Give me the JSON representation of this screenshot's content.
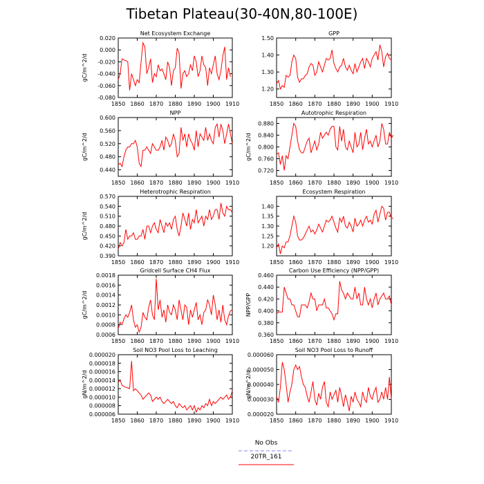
{
  "title": "Tibetan Plateau(30-40N,80-100E)",
  "legend": {
    "items": [
      {
        "label": "No Obs",
        "color": "#8080ff",
        "dash": "dashed"
      },
      {
        "label": "20TR_161",
        "color": "#ff0000",
        "dash": "solid"
      }
    ]
  },
  "chart_data": [
    {
      "type": "line",
      "title": "Net Ecosystem Exchange",
      "ylabel": "gC/m^2/d",
      "xlim": [
        1850,
        1910
      ],
      "ylim": [
        -0.08,
        0.02
      ],
      "yticks": [
        -0.08,
        -0.06,
        -0.04,
        -0.02,
        0.0,
        0.02
      ],
      "ytick_labels": [
        "-0.080",
        "-0.060",
        "-0.040",
        "-0.020",
        "0.000",
        "0.020"
      ],
      "xticks": [
        1850,
        1860,
        1870,
        1880,
        1890,
        1900,
        1910
      ],
      "series": [
        {
          "color": "#ff0000",
          "x_start": 1850,
          "values": [
            -0.05,
            -0.04,
            -0.015,
            -0.017,
            -0.018,
            -0.02,
            -0.068,
            -0.04,
            -0.05,
            -0.06,
            -0.05,
            -0.055,
            -0.02,
            0.012,
            0.005,
            -0.04,
            -0.03,
            -0.015,
            -0.055,
            -0.04,
            -0.045,
            -0.025,
            -0.035,
            -0.032,
            -0.04,
            -0.05,
            -0.02,
            -0.03,
            -0.06,
            -0.035,
            -0.03,
            0.003,
            -0.005,
            -0.065,
            -0.04,
            -0.035,
            -0.045,
            -0.04,
            -0.025,
            -0.035,
            -0.01,
            -0.02,
            -0.045,
            -0.035,
            -0.01,
            -0.025,
            -0.03,
            -0.06,
            -0.03,
            -0.04,
            -0.025,
            -0.01,
            -0.04,
            -0.05,
            -0.035,
            -0.01,
            0.005,
            -0.05,
            -0.03,
            -0.045
          ]
        }
      ]
    },
    {
      "type": "line",
      "title": "GPP",
      "ylabel": "",
      "xlim": [
        1850,
        1910
      ],
      "ylim": [
        1.15,
        1.5
      ],
      "yticks": [
        1.2,
        1.3,
        1.4,
        1.5
      ],
      "ytick_labels": [
        "1.20",
        "1.30",
        "1.40",
        "1.50"
      ],
      "xticks": [
        1850,
        1860,
        1870,
        1880,
        1890,
        1900,
        1910
      ],
      "series": [
        {
          "color": "#ff0000",
          "x_start": 1850,
          "values": [
            1.23,
            1.25,
            1.2,
            1.22,
            1.21,
            1.28,
            1.27,
            1.28,
            1.36,
            1.4,
            1.38,
            1.27,
            1.24,
            1.26,
            1.26,
            1.28,
            1.29,
            1.33,
            1.35,
            1.34,
            1.28,
            1.3,
            1.36,
            1.33,
            1.3,
            1.34,
            1.38,
            1.37,
            1.38,
            1.43,
            1.35,
            1.32,
            1.3,
            1.33,
            1.34,
            1.38,
            1.33,
            1.31,
            1.34,
            1.31,
            1.29,
            1.35,
            1.3,
            1.33,
            1.36,
            1.38,
            1.32,
            1.38,
            1.36,
            1.33,
            1.38,
            1.4,
            1.42,
            1.37,
            1.46,
            1.42,
            1.33,
            1.39,
            1.41,
            1.38,
            1.37
          ]
        }
      ]
    },
    {
      "type": "line",
      "title": "NPP",
      "ylabel": "gC/m^2/d",
      "xlim": [
        1850,
        1910
      ],
      "ylim": [
        0.42,
        0.6
      ],
      "yticks": [
        0.44,
        0.48,
        0.52,
        0.56,
        0.6
      ],
      "ytick_labels": [
        "0.440",
        "0.480",
        "0.520",
        "0.560",
        "0.600"
      ],
      "xticks": [
        1850,
        1860,
        1870,
        1880,
        1890,
        1900,
        1910
      ],
      "series": [
        {
          "color": "#ff0000",
          "x_start": 1850,
          "values": [
            0.455,
            0.46,
            0.45,
            0.48,
            0.5,
            0.51,
            0.51,
            0.52,
            0.52,
            0.53,
            0.51,
            0.46,
            0.45,
            0.5,
            0.5,
            0.51,
            0.5,
            0.49,
            0.52,
            0.51,
            0.5,
            0.5,
            0.51,
            0.53,
            0.5,
            0.54,
            0.53,
            0.51,
            0.52,
            0.55,
            0.53,
            0.48,
            0.49,
            0.57,
            0.53,
            0.55,
            0.51,
            0.55,
            0.53,
            0.52,
            0.5,
            0.56,
            0.51,
            0.55,
            0.54,
            0.53,
            0.57,
            0.53,
            0.55,
            0.53,
            0.52,
            0.57,
            0.58,
            0.54,
            0.58,
            0.56,
            0.52,
            0.55,
            0.58,
            0.55,
            0.52
          ]
        }
      ]
    },
    {
      "type": "line",
      "title": "Autotrophic Respiration",
      "ylabel": "gC/m^2/d",
      "xlim": [
        1850,
        1910
      ],
      "ylim": [
        0.7,
        0.9
      ],
      "yticks": [
        0.72,
        0.76,
        0.8,
        0.84,
        0.88
      ],
      "ytick_labels": [
        "0.720",
        "0.760",
        "0.800",
        "0.840",
        "0.880"
      ],
      "xticks": [
        1850,
        1860,
        1870,
        1880,
        1890,
        1900,
        1910
      ],
      "series": [
        {
          "color": "#ff0000",
          "x_start": 1850,
          "values": [
            0.775,
            0.78,
            0.74,
            0.77,
            0.72,
            0.77,
            0.76,
            0.8,
            0.84,
            0.88,
            0.87,
            0.82,
            0.79,
            0.78,
            0.78,
            0.8,
            0.82,
            0.83,
            0.78,
            0.8,
            0.82,
            0.79,
            0.81,
            0.85,
            0.83,
            0.84,
            0.85,
            0.84,
            0.86,
            0.87,
            0.87,
            0.8,
            0.79,
            0.87,
            0.82,
            0.86,
            0.8,
            0.79,
            0.82,
            0.8,
            0.78,
            0.85,
            0.8,
            0.81,
            0.85,
            0.79,
            0.83,
            0.86,
            0.81,
            0.82,
            0.8,
            0.82,
            0.84,
            0.8,
            0.82,
            0.88,
            0.86,
            0.81,
            0.81,
            0.85,
            0.83,
            0.84
          ]
        }
      ]
    },
    {
      "type": "line",
      "title": "Heterotrophic Respiration",
      "ylabel": "gC/m^2/d",
      "xlim": [
        1850,
        1910
      ],
      "ylim": [
        0.39,
        0.57
      ],
      "yticks": [
        0.39,
        0.42,
        0.45,
        0.48,
        0.51,
        0.54,
        0.57
      ],
      "ytick_labels": [
        "0.390",
        "0.420",
        "0.450",
        "0.480",
        "0.510",
        "0.540",
        "0.570"
      ],
      "xticks": [
        1850,
        1860,
        1870,
        1880,
        1890,
        1900,
        1910
      ],
      "series": [
        {
          "color": "#ff0000",
          "x_start": 1850,
          "values": [
            0.41,
            0.43,
            0.42,
            0.43,
            0.47,
            0.44,
            0.45,
            0.45,
            0.46,
            0.44,
            0.44,
            0.45,
            0.45,
            0.47,
            0.44,
            0.48,
            0.48,
            0.46,
            0.48,
            0.49,
            0.47,
            0.46,
            0.5,
            0.48,
            0.46,
            0.49,
            0.48,
            0.49,
            0.47,
            0.5,
            0.51,
            0.47,
            0.45,
            0.48,
            0.52,
            0.5,
            0.48,
            0.52,
            0.47,
            0.5,
            0.49,
            0.53,
            0.49,
            0.5,
            0.51,
            0.48,
            0.51,
            0.5,
            0.53,
            0.5,
            0.51,
            0.53,
            0.53,
            0.5,
            0.55,
            0.52,
            0.51,
            0.54,
            0.53,
            0.53,
            0.52
          ]
        }
      ]
    },
    {
      "type": "line",
      "title": "Ecosystem Respiration",
      "ylabel": "",
      "xlim": [
        1850,
        1910
      ],
      "ylim": [
        1.15,
        1.45
      ],
      "yticks": [
        1.2,
        1.25,
        1.3,
        1.35,
        1.4
      ],
      "ytick_labels": [
        "1.20",
        "1.25",
        "1.30",
        "1.35",
        "1.40"
      ],
      "xticks": [
        1850,
        1860,
        1870,
        1880,
        1890,
        1900,
        1910
      ],
      "series": [
        {
          "color": "#ff0000",
          "x_start": 1850,
          "values": [
            1.19,
            1.21,
            1.16,
            1.2,
            1.19,
            1.22,
            1.22,
            1.25,
            1.3,
            1.35,
            1.32,
            1.25,
            1.23,
            1.23,
            1.24,
            1.26,
            1.28,
            1.3,
            1.27,
            1.28,
            1.26,
            1.28,
            1.31,
            1.29,
            1.27,
            1.3,
            1.33,
            1.32,
            1.33,
            1.35,
            1.32,
            1.29,
            1.27,
            1.34,
            1.32,
            1.35,
            1.3,
            1.29,
            1.32,
            1.3,
            1.27,
            1.34,
            1.3,
            1.31,
            1.33,
            1.3,
            1.33,
            1.35,
            1.32,
            1.33,
            1.31,
            1.36,
            1.38,
            1.32,
            1.36,
            1.4,
            1.39,
            1.33,
            1.37,
            1.37,
            1.34,
            1.34
          ]
        }
      ]
    },
    {
      "type": "line",
      "title": "Gridcell Surface CH4 Flux",
      "ylabel": "gC/m^2/d",
      "xlim": [
        1850,
        1910
      ],
      "ylim": [
        0.0006,
        0.0018
      ],
      "yticks": [
        0.0006,
        0.0008,
        0.001,
        0.0012,
        0.0014,
        0.0016,
        0.0018
      ],
      "ytick_labels": [
        "0.0006",
        "0.0008",
        "0.0010",
        "0.0012",
        "0.0014",
        "0.0016",
        "0.0018"
      ],
      "xticks": [
        1850,
        1860,
        1870,
        1880,
        1890,
        1900,
        1910
      ],
      "series": [
        {
          "color": "#ff0000",
          "x_start": 1850,
          "values": [
            0.00072,
            0.00085,
            0.0008,
            0.00092,
            0.001,
            0.00095,
            0.00105,
            0.0012,
            0.0009,
            0.00075,
            0.0008,
            0.00065,
            0.00075,
            0.00105,
            0.00095,
            0.0009,
            0.00115,
            0.0013,
            0.001,
            0.0009,
            0.00173,
            0.0011,
            0.0013,
            0.00095,
            0.0011,
            0.00085,
            0.0012,
            0.00105,
            0.001,
            0.0012,
            0.0011,
            0.0009,
            0.0013,
            0.0011,
            0.0009,
            0.0012,
            0.00115,
            0.0008,
            0.0011,
            0.00095,
            0.0011,
            0.00125,
            0.0009,
            0.001,
            0.0008,
            0.00105,
            0.0011,
            0.0013,
            0.0012,
            0.001,
            0.0014,
            0.0012,
            0.0009,
            0.0011,
            0.00085,
            0.0012,
            0.0009,
            0.0008,
            0.00098,
            0.00108,
            0.0011
          ]
        }
      ]
    },
    {
      "type": "line",
      "title": "Carbon Use Efficiency (NPP/GPP)",
      "ylabel": "NPP/GPP",
      "xlim": [
        1850,
        1910
      ],
      "ylim": [
        0.36,
        0.46
      ],
      "yticks": [
        0.36,
        0.38,
        0.4,
        0.42,
        0.44,
        0.46
      ],
      "ytick_labels": [
        "0.360",
        "0.380",
        "0.400",
        "0.420",
        "0.440",
        "0.460"
      ],
      "xticks": [
        1850,
        1860,
        1870,
        1880,
        1890,
        1900,
        1910
      ],
      "series": [
        {
          "color": "#ff0000",
          "x_start": 1850,
          "values": [
            0.395,
            0.398,
            0.398,
            0.398,
            0.44,
            0.43,
            0.42,
            0.42,
            0.41,
            0.41,
            0.4,
            0.39,
            0.39,
            0.41,
            0.41,
            0.41,
            0.405,
            0.415,
            0.43,
            0.42,
            0.42,
            0.4,
            0.41,
            0.41,
            0.41,
            0.42,
            0.405,
            0.405,
            0.4,
            0.395,
            0.385,
            0.395,
            0.395,
            0.45,
            0.435,
            0.43,
            0.42,
            0.43,
            0.425,
            0.42,
            0.42,
            0.44,
            0.42,
            0.43,
            0.41,
            0.41,
            0.44,
            0.42,
            0.41,
            0.42,
            0.405,
            0.42,
            0.43,
            0.41,
            0.42,
            0.425,
            0.43,
            0.42,
            0.42,
            0.425,
            0.41
          ]
        }
      ]
    },
    {
      "type": "line",
      "title": "Soil NO3 Pool Loss to Leaching",
      "ylabel": "gN/m^2/d",
      "xlim": [
        1850,
        1910
      ],
      "ylim": [
        6e-06,
        2e-05
      ],
      "yticks": [
        6e-06,
        8e-06,
        1e-05,
        1.2e-05,
        1.4e-05,
        1.6e-05,
        1.8e-05,
        2e-05
      ],
      "ytick_labels": [
        "0.000006",
        "0.000008",
        "0.000010",
        "0.000012",
        "0.000014",
        "0.000016",
        "0.000018",
        "0.000020"
      ],
      "xticks": [
        1850,
        1860,
        1870,
        1880,
        1890,
        1900,
        1910
      ],
      "series": [
        {
          "color": "#ff0000",
          "x_start": 1850,
          "values": [
            1.35e-05,
            1.4e-05,
            1.28e-05,
            1.25e-05,
            1.23e-05,
            1.22e-05,
            1.2e-05,
            1.85e-05,
            1.15e-05,
            1.2e-05,
            1.15e-05,
            1.1e-05,
            1.05e-05,
            9.5e-06,
            1e-05,
            1.05e-05,
            1.1e-05,
            1.05e-05,
            9e-06,
            9.5e-06,
            1e-05,
            9.5e-06,
            1e-05,
            9e-06,
            8.5e-06,
            9e-06,
            9.5e-06,
            9e-06,
            8.5e-06,
            9e-06,
            8e-06,
            7.5e-06,
            8.5e-06,
            8e-06,
            7.5e-06,
            8e-06,
            7e-06,
            7.5e-06,
            8e-06,
            7e-06,
            8e-06,
            6.5e-06,
            7.5e-06,
            7e-06,
            8e-06,
            7.5e-06,
            8.5e-06,
            8e-06,
            9.5e-06,
            8e-06,
            9e-06,
            8.5e-06,
            9e-06,
            9.5e-06,
            1e-05,
            9.5e-06,
            1e-05,
            1.05e-05,
            9.5e-06,
            1e-05,
            1.15e-05
          ]
        }
      ]
    },
    {
      "type": "line",
      "title": "Soil NO3 Pool Loss to Runoff",
      "ylabel": "gN/m^2/d",
      "xlim": [
        1850,
        1910
      ],
      "ylim": [
        2e-05,
        6e-05
      ],
      "yticks": [
        2e-05,
        3e-05,
        4e-05,
        5e-05,
        6e-05
      ],
      "ytick_labels": [
        "0.000020",
        "0.000030",
        "0.000040",
        "0.000050",
        "0.000060"
      ],
      "xticks": [
        1850,
        1860,
        1870,
        1880,
        1890,
        1900,
        1910
      ],
      "series": [
        {
          "color": "#ff0000",
          "x_start": 1850,
          "values": [
            3.2e-05,
            2.8e-05,
            3.8e-05,
            5.5e-05,
            5e-05,
            4e-05,
            2.8e-05,
            3.5e-05,
            4e-05,
            5e-05,
            5.3e-05,
            5e-05,
            5.2e-05,
            4.5e-05,
            4e-05,
            3.8e-05,
            3.2e-05,
            2.8e-05,
            3.5e-05,
            4.2e-05,
            3e-05,
            2.6e-05,
            3.4e-05,
            3e-05,
            3.8e-05,
            4.2e-05,
            2.8e-05,
            2.5e-05,
            3.5e-05,
            3e-05,
            3.3e-05,
            3.6e-05,
            2.8e-05,
            3.8e-05,
            3.2e-05,
            2.5e-05,
            3.3e-05,
            2.8e-05,
            2.2e-05,
            3.2e-05,
            2.8e-05,
            3.5e-05,
            3e-05,
            2.8e-05,
            2.5e-05,
            3.5e-05,
            3e-05,
            2.8e-05,
            3.8e-05,
            3.2e-05,
            3e-05,
            3.5e-05,
            3.8e-05,
            2.8e-05,
            3e-05,
            3.5e-05,
            3e-05,
            3.8e-05,
            3e-05,
            4.5e-05,
            3e-05
          ]
        }
      ]
    }
  ]
}
